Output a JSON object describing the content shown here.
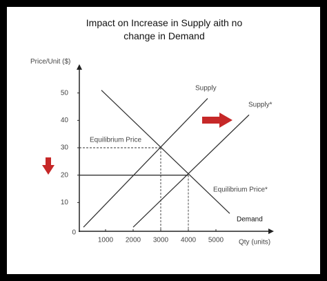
{
  "chart_data": {
    "type": "line",
    "title": "Impact on Increase in Supply aith no change in Demand",
    "y_label": "Price/Unit ($)",
    "x_label": "Qty (units)",
    "xlim": [
      0,
      7000
    ],
    "ylim": [
      0,
      60
    ],
    "xticks": [
      1000,
      2000,
      3000,
      4000,
      5000
    ],
    "yticks": [
      0,
      10,
      20,
      30,
      40,
      50
    ],
    "series": [
      {
        "name": "Supply",
        "color": "#333333",
        "x": [
          200,
          4700
        ],
        "values": [
          1,
          48
        ]
      },
      {
        "name": "Supply*",
        "color": "#333333",
        "x": [
          2000,
          6200
        ],
        "values": [
          1,
          42
        ]
      },
      {
        "name": "Demand",
        "color": "#333333",
        "x": [
          850,
          5500
        ],
        "values": [
          51,
          6
        ]
      }
    ],
    "annotations": [
      "Equilibrium Price",
      "Equilibrium Price*"
    ],
    "equilibria": [
      {
        "x": 3000,
        "y": 30
      },
      {
        "x": 4000,
        "y": 20
      }
    ]
  }
}
